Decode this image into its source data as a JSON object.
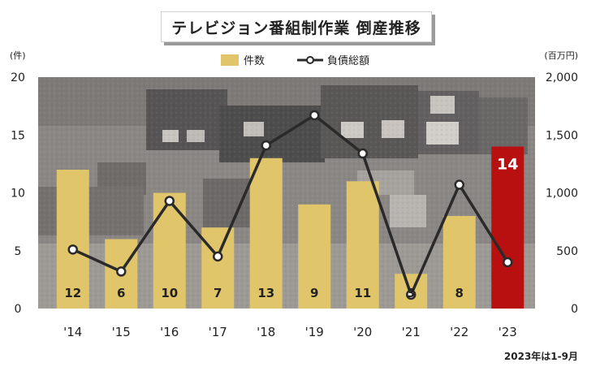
{
  "chart_data": {
    "type": "bar",
    "title": "テレビジョン番組制作業 倒産推移",
    "categories": [
      "'14",
      "'15",
      "'16",
      "'17",
      "'18",
      "'19",
      "'20",
      "'21",
      "'22",
      "'23"
    ],
    "series": [
      {
        "name": "件数",
        "type": "bar",
        "axis": "left",
        "color": "#e0c56a",
        "values": [
          12,
          6,
          10,
          7,
          13,
          9,
          11,
          3,
          8,
          14
        ]
      },
      {
        "name": "負債総額",
        "type": "line",
        "axis": "right",
        "color": "#2a2a2a",
        "values": [
          510,
          320,
          930,
          450,
          1410,
          1670,
          1340,
          120,
          1070,
          400
        ]
      }
    ],
    "highlight": {
      "index": 9,
      "color": "#b81010"
    },
    "ylabel_left": "(件)",
    "ylabel_right": "(百万円)",
    "ylim_left": [
      0,
      20
    ],
    "ylim_right": [
      0,
      2000
    ],
    "yticks_left": [
      "0",
      "5",
      "10",
      "15",
      "20"
    ],
    "yticks_right": [
      "0",
      "500",
      "1,000",
      "1,500",
      "2,000"
    ],
    "legend_position": "top-center",
    "footnote": "2023年は1-9月",
    "background": "photo of a TV broadcast control room"
  }
}
